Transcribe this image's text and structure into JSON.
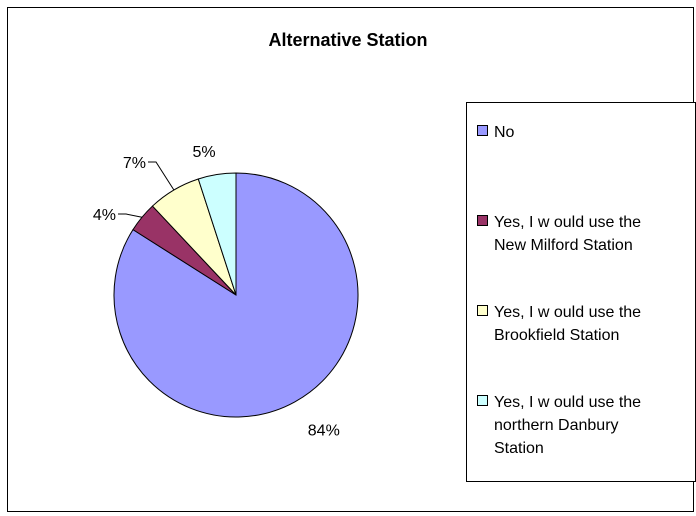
{
  "chart_data": {
    "type": "pie",
    "title": "Alternative Station",
    "categories": [
      "No",
      "Yes, I w ould use the\nNew Milford Station",
      "Yes, I w ould use the\nBrookfield Station",
      "Yes, I w ould use the\nnorthern Danbury\nStation"
    ],
    "values": [
      84,
      4,
      7,
      5
    ],
    "labels": [
      "84%",
      "4%",
      "7%",
      "5%"
    ],
    "colors": [
      "#9999FF",
      "#993366",
      "#FFFFCC",
      "#CCFFFF"
    ],
    "legend_position": "right"
  }
}
